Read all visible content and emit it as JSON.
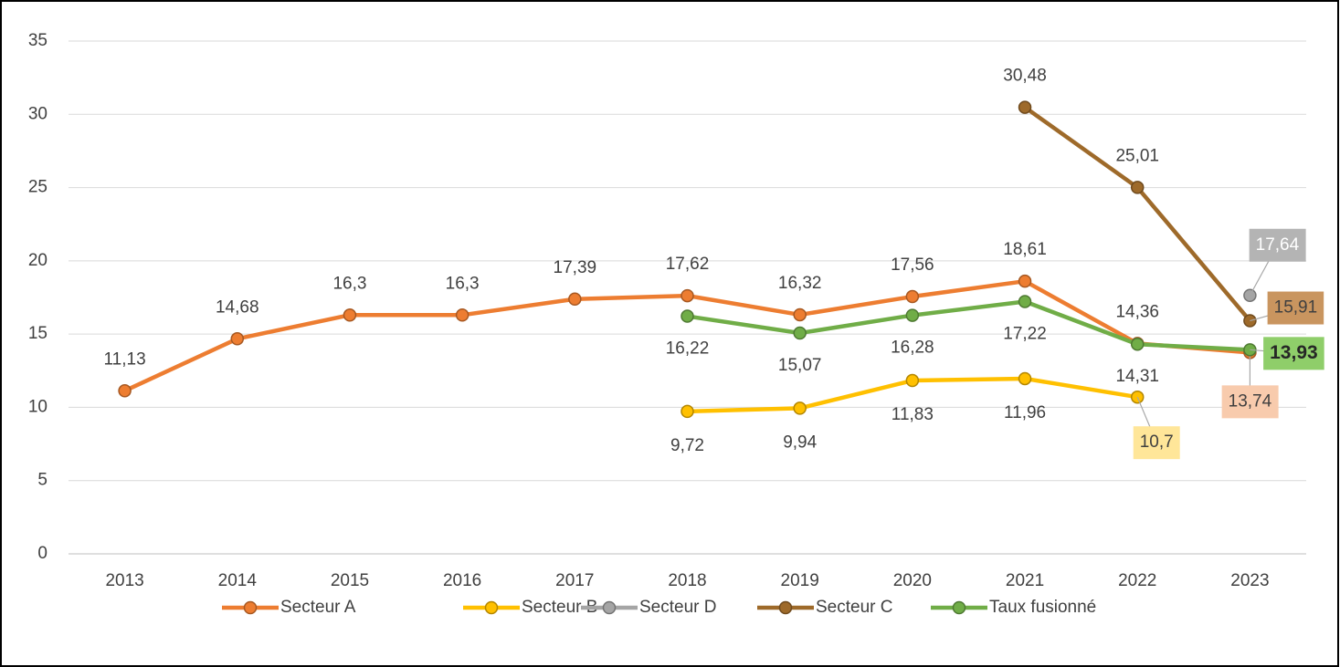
{
  "chart_data": {
    "type": "line",
    "categories": [
      "2013",
      "2014",
      "2015",
      "2016",
      "2017",
      "2018",
      "2019",
      "2020",
      "2021",
      "2022",
      "2023"
    ],
    "ylim": [
      0,
      35
    ],
    "yticks": [
      0,
      5,
      10,
      15,
      20,
      25,
      30,
      35
    ],
    "grid": true,
    "legend": "bottom",
    "series": [
      {
        "name": "Secteur A",
        "color": "#ed7d31",
        "values": [
          11.13,
          14.68,
          16.3,
          16.3,
          17.39,
          17.62,
          16.32,
          17.56,
          18.61,
          14.36,
          13.74
        ],
        "value_labels": [
          "11,13",
          "14,68",
          "16,3",
          "16,3",
          "17,39",
          "17,62",
          "16,32",
          "17,56",
          "18,61",
          "14,36",
          "13,74"
        ]
      },
      {
        "name": "Secteur B",
        "color": "#ffc000",
        "values": [
          null,
          null,
          null,
          null,
          null,
          9.72,
          9.94,
          11.83,
          11.96,
          10.7,
          null
        ],
        "value_labels": [
          null,
          null,
          null,
          null,
          null,
          "9,72",
          "9,94",
          "11,83",
          "11,96",
          "10,7",
          null
        ]
      },
      {
        "name": "Secteur D",
        "color": "#a5a5a5",
        "values": [
          null,
          null,
          null,
          null,
          null,
          null,
          null,
          null,
          null,
          null,
          17.64
        ],
        "value_labels": [
          null,
          null,
          null,
          null,
          null,
          null,
          null,
          null,
          null,
          null,
          "17,64"
        ]
      },
      {
        "name": "Secteur C",
        "color": "#9e6a2a",
        "values": [
          null,
          null,
          null,
          null,
          null,
          null,
          null,
          null,
          30.48,
          25.01,
          15.91
        ],
        "value_labels": [
          null,
          null,
          null,
          null,
          null,
          null,
          null,
          null,
          "30,48",
          "25,01",
          "15,91"
        ]
      },
      {
        "name": "Taux fusionné",
        "color": "#70ad47",
        "values": [
          null,
          null,
          null,
          null,
          null,
          16.22,
          15.07,
          16.28,
          17.22,
          14.31,
          13.93
        ],
        "value_labels": [
          null,
          null,
          null,
          null,
          null,
          "16,22",
          "15,07",
          "16,28",
          "17,22",
          "14,31",
          "13,93"
        ]
      }
    ]
  }
}
